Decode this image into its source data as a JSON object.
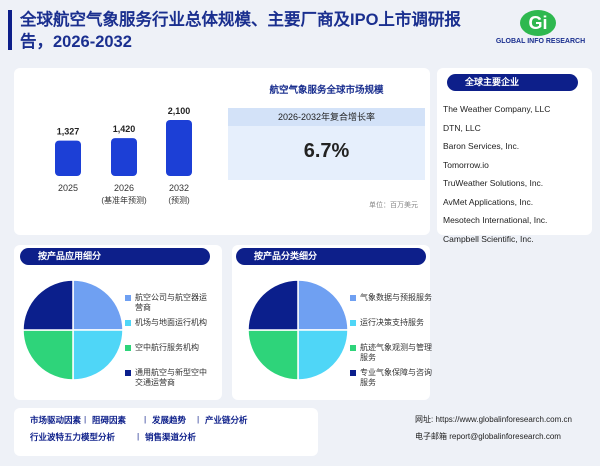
{
  "header": {
    "title": "全球航空气象服务行业总体规模、主要厂商及IPO上市调研报告，2026-2032",
    "logo": "GLOBAL INFO RESEARCH"
  },
  "chart_data": [
    {
      "type": "bar",
      "categories": [
        "2025",
        "2026",
        "2032"
      ],
      "category_notes": [
        null,
        "(基准年预测)",
        "(预测)"
      ],
      "values": [
        1327,
        1420,
        2100
      ],
      "value_labels": [
        "1,327",
        "1,420",
        "2,100"
      ],
      "color": "#1c3fd6"
    },
    {
      "type": "pie",
      "title": "按产品应用细分",
      "categories": [
        "航空公司与航空器运营商",
        "机场与地面运行机构",
        "空中航行服务机构",
        "通用航空与新型空中交通运营商"
      ],
      "values": [
        25,
        25,
        25,
        25
      ],
      "colors": [
        "#6fa0f2",
        "#4fd6f7",
        "#2ed47a",
        "#0b1f8c"
      ]
    },
    {
      "type": "pie",
      "title": "按产品分类细分",
      "categories": [
        "气象数据与预报服务",
        "运行决策支持服务",
        "航迹气象观测与管理服务",
        "专业气象保障与咨询服务"
      ],
      "values": [
        25,
        25,
        25,
        25
      ],
      "colors": [
        "#6fa0f2",
        "#4fd6f7",
        "#2ed47a",
        "#0b1f8c"
      ]
    }
  ],
  "market": {
    "title": "航空气象服务全球市场规模",
    "cagr_label": "2026-2032年复合增长率",
    "cagr": "6.7%",
    "unit": "单位：百万美元"
  },
  "companies": {
    "title": "全球主要企业",
    "items": [
      "The Weather Company, LLC",
      "DTN, LLC",
      "Baron Services, Inc.",
      "Tomorrow.io",
      "TruWeather Solutions, Inc.",
      "AvMet Applications, Inc.",
      "Mesotech International, Inc.",
      "Campbell Scientific, Inc."
    ]
  },
  "footer": {
    "links": [
      "市场驱动因素",
      "阻碍因素",
      "发展趋势",
      "产业链分析",
      "行业波特五力模型分析",
      "销售渠道分析"
    ],
    "website": "网址: https://www.globalinforesearch.com.cn",
    "email": "电子邮箱 report@globalinforesearch.com"
  }
}
